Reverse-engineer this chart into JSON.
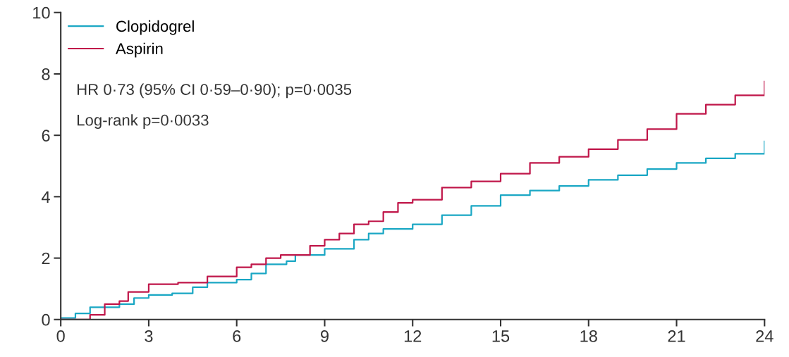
{
  "chart_data": {
    "type": "step",
    "xlim": [
      0,
      24
    ],
    "xticks": [
      0,
      3,
      6,
      9,
      12,
      15,
      18,
      21,
      24
    ],
    "ylim": [
      0,
      10
    ],
    "yticks": [
      0,
      2,
      4,
      6,
      8,
      10
    ],
    "grid": false,
    "legend": "top left",
    "marker": "none",
    "line_style": "solid",
    "annotations": [
      "HR 0·73 (95% CI 0·59–0·90); p=0·0035",
      "Log-rank p=0·0033"
    ],
    "series": [
      {
        "name": "Clopidogrel",
        "color": "#1aa7c4",
        "x": [
          0,
          0.5,
          1,
          2,
          2.5,
          3,
          3.8,
          4.5,
          5,
          6,
          6.5,
          7,
          7.7,
          8,
          9,
          10,
          10.5,
          11,
          12,
          13,
          14,
          15,
          16,
          17,
          18,
          19,
          20,
          21,
          22,
          23,
          24
        ],
        "values": [
          0.05,
          0.2,
          0.4,
          0.5,
          0.7,
          0.8,
          0.85,
          1.05,
          1.2,
          1.3,
          1.5,
          1.8,
          1.9,
          2.1,
          2.3,
          2.6,
          2.8,
          2.95,
          3.1,
          3.4,
          3.7,
          4.05,
          4.2,
          4.35,
          4.55,
          4.7,
          4.9,
          5.1,
          5.25,
          5.4,
          5.8
        ]
      },
      {
        "name": "Aspirin",
        "color": "#c0174a",
        "x": [
          0,
          1,
          1.5,
          2,
          2.3,
          3,
          4,
          5,
          6,
          6.5,
          7,
          7.5,
          8,
          8.5,
          9,
          9.5,
          10,
          10.5,
          11,
          11.5,
          12,
          13,
          14,
          15,
          16,
          17,
          18,
          19,
          20,
          21,
          22,
          23,
          24
        ],
        "values": [
          0,
          0.15,
          0.5,
          0.6,
          0.9,
          1.15,
          1.2,
          1.4,
          1.7,
          1.8,
          2.0,
          2.1,
          2.1,
          2.4,
          2.6,
          2.8,
          3.1,
          3.2,
          3.5,
          3.8,
          3.9,
          4.3,
          4.5,
          4.75,
          5.1,
          5.3,
          5.55,
          5.85,
          6.2,
          6.7,
          7.0,
          7.3,
          7.75
        ]
      }
    ]
  }
}
